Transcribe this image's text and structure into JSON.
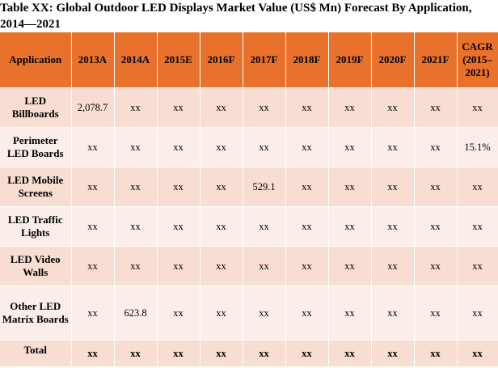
{
  "title": "Table XX: Global Outdoor LED Displays Market Value (US$ Mn) Forecast By Application, 2014—2021",
  "headers": [
    "Application",
    "2013A",
    "2014A",
    "2015E",
    "2016F",
    "2017F",
    "2018F",
    "2019F",
    "2020F",
    "2021F",
    "CAGR (2015–2021)"
  ],
  "rows": [
    {
      "label": "LED Billboards",
      "cells": [
        "2,078.7",
        "xx",
        "xx",
        "xx",
        "xx",
        "xx",
        "xx",
        "xx",
        "xx",
        "xx"
      ]
    },
    {
      "label": "Perimeter LED Boards",
      "cells": [
        "xx",
        "xx",
        "xx",
        "xx",
        "xx",
        "xx",
        "xx",
        "xx",
        "xx",
        "15.1%"
      ]
    },
    {
      "label": "LED Mobile Screens",
      "cells": [
        "xx",
        "xx",
        "xx",
        "xx",
        "529.1",
        "xx",
        "xx",
        "xx",
        "xx",
        "xx"
      ]
    },
    {
      "label": "LED Traffic Lights",
      "cells": [
        "xx",
        "xx",
        "xx",
        "xx",
        "xx",
        "xx",
        "xx",
        "xx",
        "xx",
        "xx"
      ]
    },
    {
      "label": "LED Video Walls",
      "cells": [
        "xx",
        "xx",
        "xx",
        "xx",
        "xx",
        "xx",
        "xx",
        "xx",
        "xx",
        "xx"
      ]
    },
    {
      "label": "Other LED Matrix Boards",
      "cells": [
        "xx",
        "623.8",
        "xx",
        "xx",
        "xx",
        "xx",
        "xx",
        "xx",
        "xx",
        "xx"
      ]
    },
    {
      "label": "Total",
      "cells": [
        "xx",
        "xx",
        "xx",
        "xx",
        "xx",
        "xx",
        "xx",
        "xx",
        "xx",
        "xx"
      ]
    }
  ],
  "colors": {
    "header_bg": "#e8712b",
    "row_odd": "#f7ddd2",
    "row_even": "#fbeee8"
  }
}
